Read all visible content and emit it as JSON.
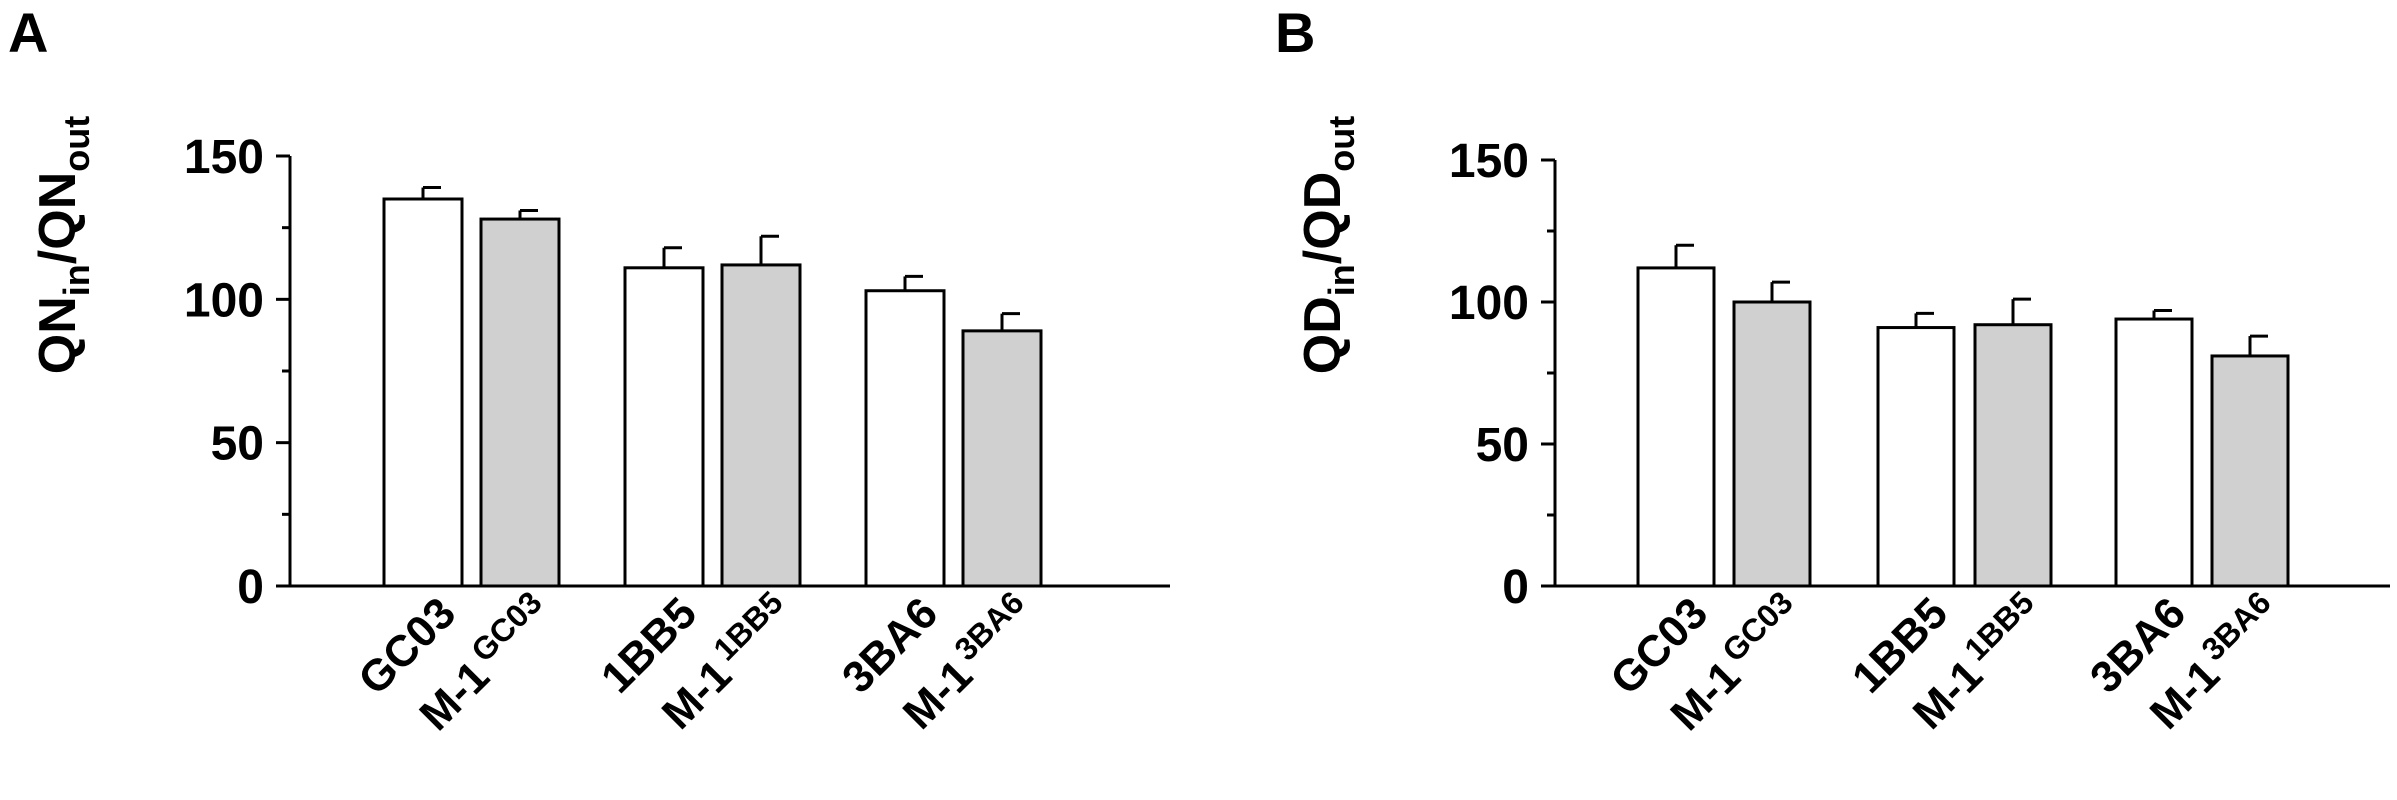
{
  "panels": [
    {
      "letter": "A",
      "ylabel_main": "QN",
      "ylabel_sub1": "in",
      "ylabel_mid": "/QN",
      "ylabel_sub2": "out"
    },
    {
      "letter": "B",
      "ylabel_main": "QD",
      "ylabel_sub1": "in",
      "ylabel_mid": "/QD",
      "ylabel_sub2": "out"
    }
  ],
  "colors": {
    "white_bar": "#ffffff",
    "gray_bar": "#d0d0d0",
    "axis": "#000000"
  },
  "chart_data": [
    {
      "type": "bar",
      "panel": "A",
      "ylabel": "QNin/QNout",
      "ylim": [
        0,
        150
      ],
      "yticks": [
        0,
        50,
        100,
        150
      ],
      "categories": [
        {
          "main": "GC03",
          "sup": ""
        },
        {
          "main": "M-1",
          "sup": "GC03"
        },
        {
          "main": "1BB5",
          "sup": ""
        },
        {
          "main": "M-1",
          "sup": "1BB5"
        },
        {
          "main": "3BA6",
          "sup": ""
        },
        {
          "main": "M-1",
          "sup": "3BA6"
        }
      ],
      "values": [
        135,
        128,
        111,
        112,
        103,
        89
      ],
      "errors": [
        4,
        3,
        7,
        10,
        5,
        6
      ],
      "fills": [
        "white",
        "gray",
        "white",
        "gray",
        "white",
        "gray"
      ]
    },
    {
      "type": "bar",
      "panel": "B",
      "ylabel": "QDin/QDout",
      "ylim": [
        0,
        150
      ],
      "yticks": [
        0,
        50,
        100,
        150
      ],
      "categories": [
        {
          "main": "GC03",
          "sup": ""
        },
        {
          "main": "M-1",
          "sup": "GC03"
        },
        {
          "main": "1BB5",
          "sup": ""
        },
        {
          "main": "M-1",
          "sup": "1BB5"
        },
        {
          "main": "3BA6",
          "sup": ""
        },
        {
          "main": "M-1",
          "sup": "3BA6"
        }
      ],
      "values": [
        112,
        100,
        91,
        92,
        94,
        81
      ],
      "errors": [
        8,
        7,
        5,
        9,
        3,
        7
      ],
      "fills": [
        "white",
        "gray",
        "white",
        "gray",
        "white",
        "gray"
      ]
    }
  ]
}
